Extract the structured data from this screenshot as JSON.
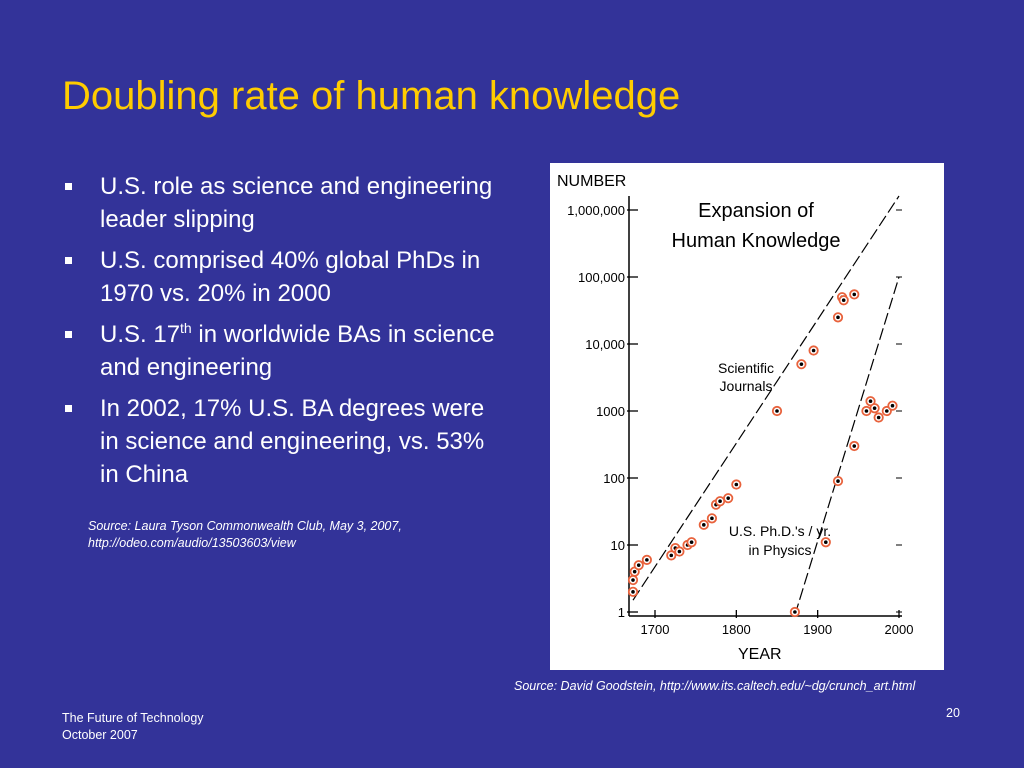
{
  "slide": {
    "title": "Doubling rate of human knowledge",
    "bullets": [
      {
        "text": "U.S. role as science and engineering leader slipping"
      },
      {
        "text": "U.S. comprised 40% global PhDs in 1970 vs. 20% in 2000"
      },
      {
        "pre": "U.S. 17",
        "sup": "th",
        "post": " in worldwide BAs in science and engineering"
      },
      {
        "text": "In 2002, 17% U.S. BA degrees were in science and engineering, vs. 53% in China"
      }
    ],
    "source_left_line1": "Source: Laura Tyson Commonwealth Club, May 3, 2007,",
    "source_left_line2": "http://odeo.com/audio/13503603/view",
    "chart_source": "Source: David Goodstein, http://www.its.caltech.edu/~dg/crunch_art.html",
    "footer_line1": "The Future of Technology",
    "footer_line2": "October 2007",
    "page_number": "20",
    "colors": {
      "background": "#333399",
      "title": "#ffcc00",
      "text": "#ffffff",
      "marker_ring": "#e8623c"
    }
  },
  "chart_data": {
    "type": "scatter",
    "title_line1": "Expansion of",
    "title_line2": "Human Knowledge",
    "ylabel": "NUMBER",
    "xlabel": "YEAR",
    "yscale": "log",
    "xlim": [
      1668,
      2000
    ],
    "ylim": [
      0.9,
      2500000
    ],
    "x_ticks": [
      1700,
      1800,
      1900,
      2000
    ],
    "y_ticks": [
      {
        "value": 1,
        "label": "1"
      },
      {
        "value": 10,
        "label": "10"
      },
      {
        "value": 100,
        "label": "100"
      },
      {
        "value": 1000,
        "label": "1000"
      },
      {
        "value": 10000,
        "label": "10,000"
      },
      {
        "value": 100000,
        "label": "100,000"
      },
      {
        "value": 1000000,
        "label": "1,000,000"
      }
    ],
    "series": [
      {
        "name": "Scientific Journals",
        "label_line1": "Scientific",
        "label_line2": "Journals",
        "points": [
          [
            1665,
            2
          ],
          [
            1670,
            3
          ],
          [
            1675,
            4
          ],
          [
            1680,
            5
          ],
          [
            1690,
            6
          ],
          [
            1720,
            7
          ],
          [
            1725,
            9
          ],
          [
            1730,
            8
          ],
          [
            1740,
            10
          ],
          [
            1745,
            11
          ],
          [
            1760,
            20
          ],
          [
            1770,
            25
          ],
          [
            1775,
            40
          ],
          [
            1780,
            45
          ],
          [
            1790,
            50
          ],
          [
            1800,
            80
          ],
          [
            1850,
            1000
          ],
          [
            1880,
            5000
          ],
          [
            1895,
            8000
          ],
          [
            1925,
            25000
          ],
          [
            1930,
            50000
          ],
          [
            1932,
            45000
          ],
          [
            1945,
            55000
          ]
        ],
        "trend": [
          [
            1665,
            1.5
          ],
          [
            2000,
            2000000
          ]
        ]
      },
      {
        "name": "U.S. Ph.D.'s / yr. in Physics",
        "label_line1": "U.S. Ph.D.'s / yr.",
        "label_line2": "in Physics",
        "points": [
          [
            1872,
            1
          ],
          [
            1910,
            11
          ],
          [
            1925,
            90
          ],
          [
            1945,
            300
          ],
          [
            1960,
            1000
          ],
          [
            1965,
            1400
          ],
          [
            1970,
            1100
          ],
          [
            1975,
            800
          ],
          [
            1985,
            1000
          ],
          [
            1992,
            1200
          ]
        ],
        "trend": [
          [
            1872,
            0.9
          ],
          [
            2000,
            100000
          ]
        ]
      }
    ]
  }
}
